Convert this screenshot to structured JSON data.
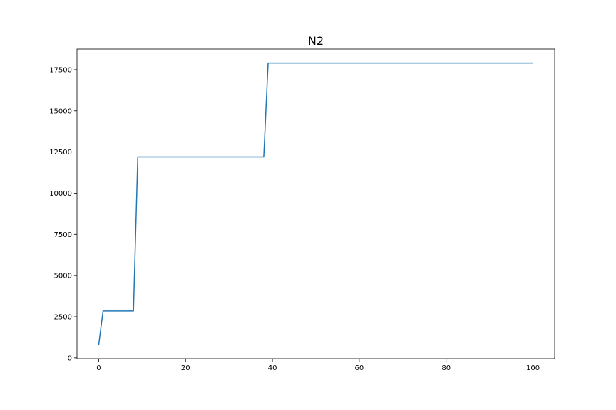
{
  "chart_data": {
    "type": "line",
    "title": "N2",
    "xlabel": "",
    "ylabel": "",
    "xlim": [
      -5,
      105
    ],
    "ylim": [
      -50,
      18750
    ],
    "x_ticks": [
      0,
      20,
      40,
      60,
      80,
      100
    ],
    "x_tick_labels": [
      "0",
      "20",
      "40",
      "60",
      "80",
      "100"
    ],
    "y_ticks": [
      0,
      2500,
      5000,
      7500,
      10000,
      12500,
      15000,
      17500
    ],
    "y_tick_labels": [
      "0",
      "2500",
      "5000",
      "7500",
      "10000",
      "12500",
      "15000",
      "17500"
    ],
    "grid": false,
    "series": [
      {
        "color": "#1f77b4",
        "x": [
          0,
          1,
          8,
          9,
          38,
          39,
          100
        ],
        "y": [
          800,
          2850,
          2850,
          12200,
          12200,
          17900,
          17900
        ]
      }
    ]
  }
}
